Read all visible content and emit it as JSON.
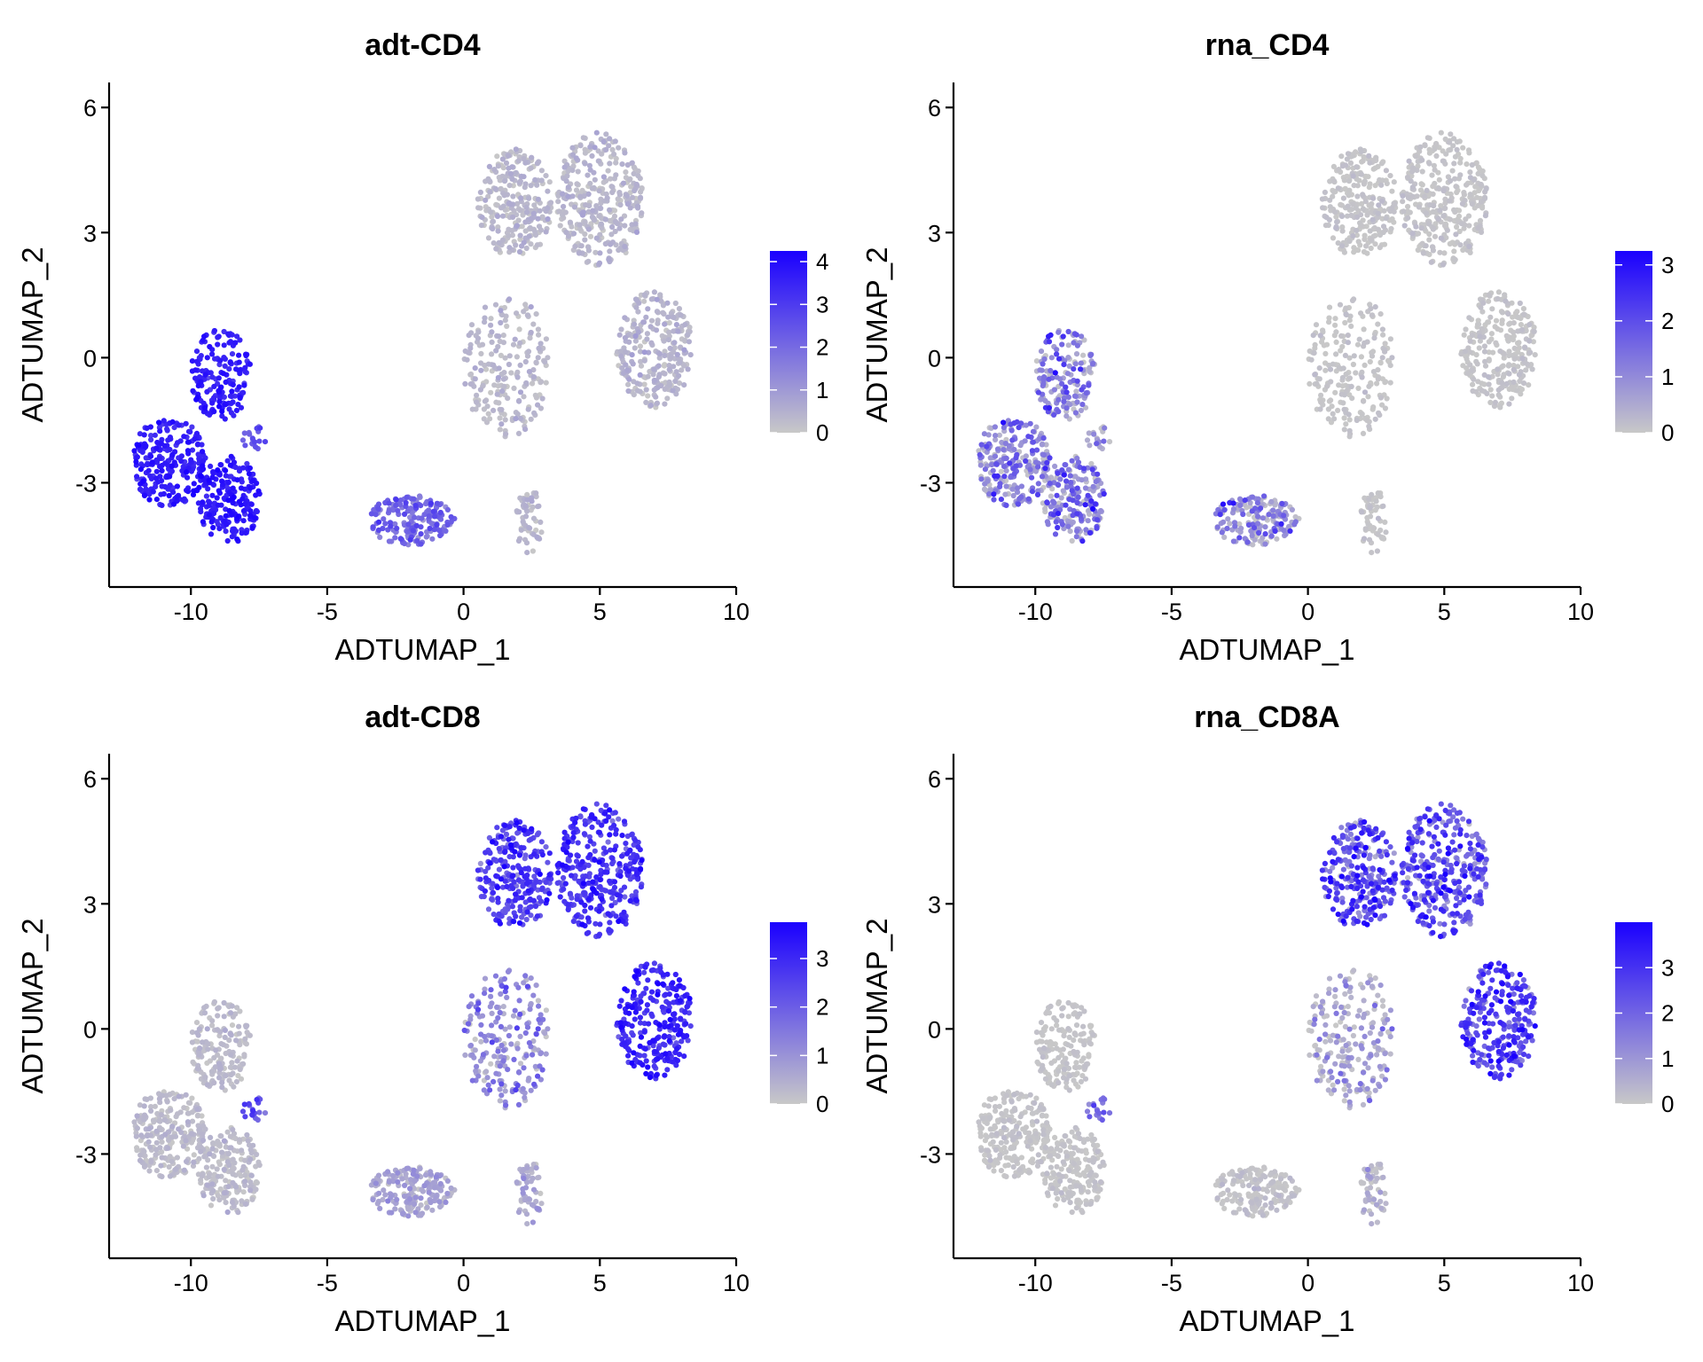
{
  "chart_data": [
    {
      "type": "scatter",
      "title": "adt-CD4",
      "xlabel": "ADTUMAP_1",
      "ylabel": "ADTUMAP_2",
      "xlim": [
        -13,
        10
      ],
      "ylim": [
        -5.5,
        6.6
      ],
      "xticks": [
        -10,
        -5,
        0,
        5,
        10
      ],
      "yticks": [
        -3,
        0,
        3,
        6
      ],
      "xtick_labels": [
        "-10",
        "-5",
        "0",
        "5",
        "10"
      ],
      "ytick_labels": [
        "-3",
        "0",
        "3",
        "6"
      ],
      "color_scale": {
        "low": "#c8c8c8",
        "high": "#1a00ff",
        "min": 0,
        "max": 4.25,
        "ticks": [
          0,
          1,
          2,
          3,
          4
        ],
        "tick_labels": [
          "0",
          "1",
          "2",
          "3",
          "4"
        ]
      },
      "clusters": [
        {
          "name": "A",
          "cx": -10.8,
          "cy": -2.5,
          "rx": 1.35,
          "ry": 1.1,
          "n": 240,
          "mean": 3.6,
          "sd": 0.3
        },
        {
          "name": "B",
          "cx": -8.9,
          "cy": -0.4,
          "rx": 1.1,
          "ry": 1.1,
          "n": 170,
          "mean": 3.6,
          "sd": 0.3
        },
        {
          "name": "C",
          "cx": -8.6,
          "cy": -3.4,
          "rx": 1.15,
          "ry": 1.05,
          "n": 190,
          "mean": 3.7,
          "sd": 0.3
        },
        {
          "name": "D",
          "cx": -1.9,
          "cy": -3.9,
          "rx": 1.6,
          "ry": 0.6,
          "n": 180,
          "mean": 2.1,
          "sd": 0.5
        },
        {
          "name": "E",
          "cx": 1.9,
          "cy": 3.7,
          "rx": 1.4,
          "ry": 1.3,
          "n": 260,
          "mean": 0.3,
          "sd": 0.2
        },
        {
          "name": "F",
          "cx": 5.0,
          "cy": 3.8,
          "rx": 1.6,
          "ry": 1.6,
          "n": 330,
          "mean": 0.3,
          "sd": 0.2
        },
        {
          "name": "G",
          "cx": 7.0,
          "cy": 0.2,
          "rx": 1.4,
          "ry": 1.4,
          "n": 260,
          "mean": 0.35,
          "sd": 0.2
        },
        {
          "name": "H",
          "cx": 1.6,
          "cy": -0.2,
          "rx": 1.6,
          "ry": 1.7,
          "n": 210,
          "mean": 0.3,
          "sd": 0.2
        },
        {
          "name": "I",
          "cx": 2.4,
          "cy": -3.9,
          "rx": 0.5,
          "ry": 0.8,
          "n": 55,
          "mean": 0.3,
          "sd": 0.2
        },
        {
          "name": "J",
          "cx": -7.7,
          "cy": -1.9,
          "rx": 0.5,
          "ry": 0.3,
          "n": 18,
          "mean": 2.5,
          "sd": 0.4
        }
      ]
    },
    {
      "type": "scatter",
      "title": "rna_CD4",
      "xlabel": "ADTUMAP_1",
      "ylabel": "ADTUMAP_2",
      "xlim": [
        -13,
        10
      ],
      "ylim": [
        -5.5,
        6.6
      ],
      "xticks": [
        -10,
        -5,
        0,
        5,
        10
      ],
      "yticks": [
        -3,
        0,
        3,
        6
      ],
      "xtick_labels": [
        "-10",
        "-5",
        "0",
        "5",
        "10"
      ],
      "ytick_labels": [
        "-3",
        "0",
        "3",
        "6"
      ],
      "color_scale": {
        "low": "#c8c8c8",
        "high": "#1a00ff",
        "min": 0,
        "max": 3.25,
        "ticks": [
          0,
          1,
          2,
          3
        ],
        "tick_labels": [
          "0",
          "1",
          "2",
          "3"
        ]
      },
      "clusters": [
        {
          "name": "A",
          "cx": -10.8,
          "cy": -2.5,
          "rx": 1.35,
          "ry": 1.1,
          "n": 240,
          "mean": 0.9,
          "sd": 0.9
        },
        {
          "name": "B",
          "cx": -8.9,
          "cy": -0.4,
          "rx": 1.1,
          "ry": 1.1,
          "n": 170,
          "mean": 0.9,
          "sd": 0.9
        },
        {
          "name": "C",
          "cx": -8.6,
          "cy": -3.4,
          "rx": 1.15,
          "ry": 1.05,
          "n": 190,
          "mean": 0.9,
          "sd": 0.9
        },
        {
          "name": "D",
          "cx": -1.9,
          "cy": -3.9,
          "rx": 1.6,
          "ry": 0.6,
          "n": 180,
          "mean": 0.8,
          "sd": 0.9
        },
        {
          "name": "E",
          "cx": 1.9,
          "cy": 3.7,
          "rx": 1.4,
          "ry": 1.3,
          "n": 260,
          "mean": 0.03,
          "sd": 0.08
        },
        {
          "name": "F",
          "cx": 5.0,
          "cy": 3.8,
          "rx": 1.6,
          "ry": 1.6,
          "n": 330,
          "mean": 0.03,
          "sd": 0.08
        },
        {
          "name": "G",
          "cx": 7.0,
          "cy": 0.2,
          "rx": 1.4,
          "ry": 1.4,
          "n": 260,
          "mean": 0.03,
          "sd": 0.08
        },
        {
          "name": "H",
          "cx": 1.6,
          "cy": -0.2,
          "rx": 1.6,
          "ry": 1.7,
          "n": 210,
          "mean": 0.03,
          "sd": 0.08
        },
        {
          "name": "I",
          "cx": 2.4,
          "cy": -3.9,
          "rx": 0.5,
          "ry": 0.8,
          "n": 55,
          "mean": 0.03,
          "sd": 0.08
        },
        {
          "name": "J",
          "cx": -7.7,
          "cy": -1.9,
          "rx": 0.5,
          "ry": 0.3,
          "n": 18,
          "mean": 0.4,
          "sd": 0.5
        }
      ]
    },
    {
      "type": "scatter",
      "title": "adt-CD8",
      "xlabel": "ADTUMAP_1",
      "ylabel": "ADTUMAP_2",
      "xlim": [
        -13,
        10
      ],
      "ylim": [
        -5.5,
        6.6
      ],
      "xticks": [
        -10,
        -5,
        0,
        5,
        10
      ],
      "yticks": [
        -3,
        0,
        3,
        6
      ],
      "xtick_labels": [
        "-10",
        "-5",
        "0",
        "5",
        "10"
      ],
      "ytick_labels": [
        "-3",
        "0",
        "3",
        "6"
      ],
      "color_scale": {
        "low": "#c8c8c8",
        "high": "#1a00ff",
        "min": 0,
        "max": 3.75,
        "ticks": [
          0,
          1,
          2,
          3
        ],
        "tick_labels": [
          "0",
          "1",
          "2",
          "3"
        ]
      },
      "clusters": [
        {
          "name": "A",
          "cx": -10.8,
          "cy": -2.5,
          "rx": 1.35,
          "ry": 1.1,
          "n": 240,
          "mean": 0.2,
          "sd": 0.15
        },
        {
          "name": "B",
          "cx": -8.9,
          "cy": -0.4,
          "rx": 1.1,
          "ry": 1.1,
          "n": 170,
          "mean": 0.2,
          "sd": 0.15
        },
        {
          "name": "C",
          "cx": -8.6,
          "cy": -3.4,
          "rx": 1.15,
          "ry": 1.05,
          "n": 190,
          "mean": 0.2,
          "sd": 0.15
        },
        {
          "name": "D",
          "cx": -1.9,
          "cy": -3.9,
          "rx": 1.6,
          "ry": 0.6,
          "n": 180,
          "mean": 0.6,
          "sd": 0.3
        },
        {
          "name": "E",
          "cx": 1.9,
          "cy": 3.7,
          "rx": 1.4,
          "ry": 1.3,
          "n": 260,
          "mean": 2.6,
          "sd": 0.5
        },
        {
          "name": "F",
          "cx": 5.0,
          "cy": 3.8,
          "rx": 1.6,
          "ry": 1.6,
          "n": 330,
          "mean": 2.7,
          "sd": 0.5
        },
        {
          "name": "G",
          "cx": 7.0,
          "cy": 0.2,
          "rx": 1.4,
          "ry": 1.4,
          "n": 260,
          "mean": 3.0,
          "sd": 0.4
        },
        {
          "name": "H",
          "cx": 1.6,
          "cy": -0.2,
          "rx": 1.6,
          "ry": 1.7,
          "n": 210,
          "mean": 1.0,
          "sd": 0.6
        },
        {
          "name": "I",
          "cx": 2.4,
          "cy": -3.9,
          "rx": 0.5,
          "ry": 0.8,
          "n": 55,
          "mean": 0.5,
          "sd": 0.3
        },
        {
          "name": "J",
          "cx": -7.7,
          "cy": -1.9,
          "rx": 0.5,
          "ry": 0.3,
          "n": 18,
          "mean": 2.2,
          "sd": 0.4
        }
      ]
    },
    {
      "type": "scatter",
      "title": "rna_CD8A",
      "xlabel": "ADTUMAP_1",
      "ylabel": "ADTUMAP_2",
      "xlim": [
        -13,
        10
      ],
      "ylim": [
        -5.5,
        6.6
      ],
      "xticks": [
        -10,
        -5,
        0,
        5,
        10
      ],
      "yticks": [
        -3,
        0,
        3,
        6
      ],
      "xtick_labels": [
        "-10",
        "-5",
        "0",
        "5",
        "10"
      ],
      "ytick_labels": [
        "-3",
        "0",
        "3",
        "6"
      ],
      "color_scale": {
        "low": "#c8c8c8",
        "high": "#1a00ff",
        "min": 0,
        "max": 4.0,
        "ticks": [
          0,
          1,
          2,
          3
        ],
        "tick_labels": [
          "0",
          "1",
          "2",
          "3"
        ]
      },
      "clusters": [
        {
          "name": "A",
          "cx": -10.8,
          "cy": -2.5,
          "rx": 1.35,
          "ry": 1.1,
          "n": 240,
          "mean": 0.03,
          "sd": 0.1
        },
        {
          "name": "B",
          "cx": -8.9,
          "cy": -0.4,
          "rx": 1.1,
          "ry": 1.1,
          "n": 170,
          "mean": 0.03,
          "sd": 0.1
        },
        {
          "name": "C",
          "cx": -8.6,
          "cy": -3.4,
          "rx": 1.15,
          "ry": 1.05,
          "n": 190,
          "mean": 0.03,
          "sd": 0.1
        },
        {
          "name": "D",
          "cx": -1.9,
          "cy": -3.9,
          "rx": 1.6,
          "ry": 0.6,
          "n": 180,
          "mean": 0.05,
          "sd": 0.15
        },
        {
          "name": "E",
          "cx": 1.9,
          "cy": 3.7,
          "rx": 1.4,
          "ry": 1.3,
          "n": 260,
          "mean": 2.3,
          "sd": 0.9
        },
        {
          "name": "F",
          "cx": 5.0,
          "cy": 3.8,
          "rx": 1.6,
          "ry": 1.6,
          "n": 330,
          "mean": 2.3,
          "sd": 0.9
        },
        {
          "name": "G",
          "cx": 7.0,
          "cy": 0.2,
          "rx": 1.4,
          "ry": 1.4,
          "n": 260,
          "mean": 2.6,
          "sd": 0.8
        },
        {
          "name": "H",
          "cx": 1.6,
          "cy": -0.2,
          "rx": 1.6,
          "ry": 1.7,
          "n": 210,
          "mean": 0.6,
          "sd": 0.8
        },
        {
          "name": "I",
          "cx": 2.4,
          "cy": -3.9,
          "rx": 0.5,
          "ry": 0.8,
          "n": 55,
          "mean": 0.2,
          "sd": 0.4
        },
        {
          "name": "J",
          "cx": -7.7,
          "cy": -1.9,
          "rx": 0.5,
          "ry": 0.3,
          "n": 18,
          "mean": 1.8,
          "sd": 0.5
        }
      ]
    }
  ]
}
